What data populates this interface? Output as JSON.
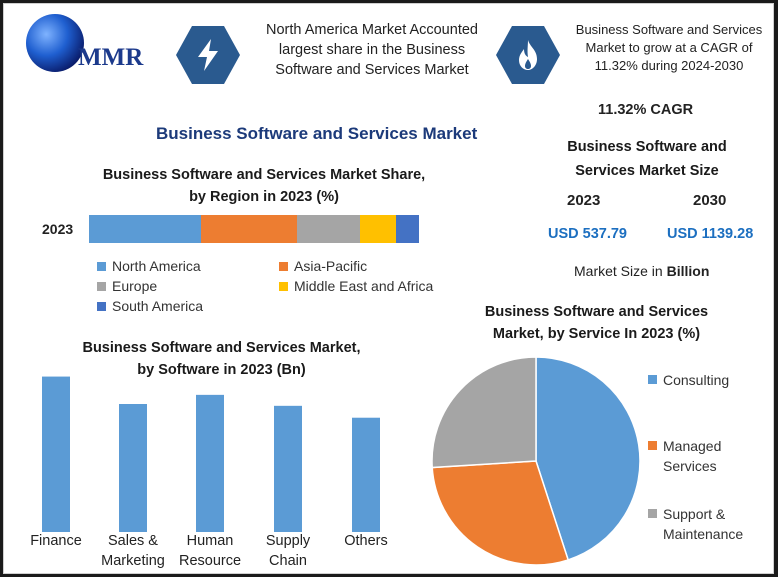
{
  "logo": {
    "text": "MMR"
  },
  "header": {
    "highlight_left": "North America Market Accounted largest share in the Business Software and Services Market",
    "highlight_left_lines": [
      "North America Market Accounted",
      "largest share in the Business",
      "Software and Services Market"
    ],
    "highlight_right_lines": [
      "Business Software and Services",
      "Market to grow at a CAGR of",
      "11.32% during 2024-2030"
    ],
    "left_icon": "lightning-bolt-icon",
    "right_icon": "flame-icon"
  },
  "main_title": "Business Software and Services Market",
  "market_size": {
    "cagr_label": "11.32% CAGR",
    "title_lines": [
      "Business Software and",
      "Services Market Size"
    ],
    "year_a": "2023",
    "year_b": "2030",
    "value_a": "USD 537.79",
    "value_b": "USD 1139.28",
    "unit_prefix": "Market Size in ",
    "unit_bold": "Billion"
  },
  "colors": {
    "blue": "#5b9bd5",
    "orange": "#ed7d31",
    "gray": "#a5a5a5",
    "yellow": "#ffc000",
    "darkblue": "#4472c4",
    "title_blue": "#1c3a7a",
    "value_blue": "#1c6fc0",
    "hex_icon": "#2a5a8f"
  },
  "chart_data": [
    {
      "type": "bar",
      "orientation": "horizontal-stacked",
      "title_lines": [
        "Business Software and Services Market Share,",
        "by Region in 2023 (%)"
      ],
      "categories": [
        "2023"
      ],
      "series": [
        {
          "name": "North America",
          "values": [
            34
          ]
        },
        {
          "name": "Asia-Pacific",
          "values": [
            29
          ]
        },
        {
          "name": "Europe",
          "values": [
            19
          ]
        },
        {
          "name": "Middle East and Africa",
          "values": [
            11
          ]
        },
        {
          "name": "South America",
          "values": [
            7
          ]
        }
      ],
      "legend": "bottom",
      "grid": false
    },
    {
      "type": "bar",
      "title_lines": [
        "Business Software and Services Market,",
        "by Software in 2023 (Bn)"
      ],
      "categories": [
        "Finance",
        "Sales & Marketing",
        "Human Resource",
        "Supply Chain",
        "Others"
      ],
      "category_lines": [
        [
          "Finance"
        ],
        [
          "Sales &",
          "Marketing"
        ],
        [
          "Human",
          "Resource"
        ],
        [
          "Supply",
          "Chain"
        ],
        [
          "Others"
        ]
      ],
      "values": [
        170,
        140,
        150,
        138,
        125
      ],
      "ylim": [
        0,
        175
      ],
      "grid": false
    },
    {
      "type": "pie",
      "title_lines": [
        "Business Software and Services",
        "Market, by Service In 2023 (%)"
      ],
      "categories": [
        "Consulting",
        "Managed Services",
        "Support & Maintenance"
      ],
      "category_lines": [
        [
          "Consulting"
        ],
        [
          "Managed",
          "Services"
        ],
        [
          "Support &",
          "Maintenance"
        ]
      ],
      "values": [
        45,
        29,
        26
      ],
      "legend": "right"
    }
  ]
}
